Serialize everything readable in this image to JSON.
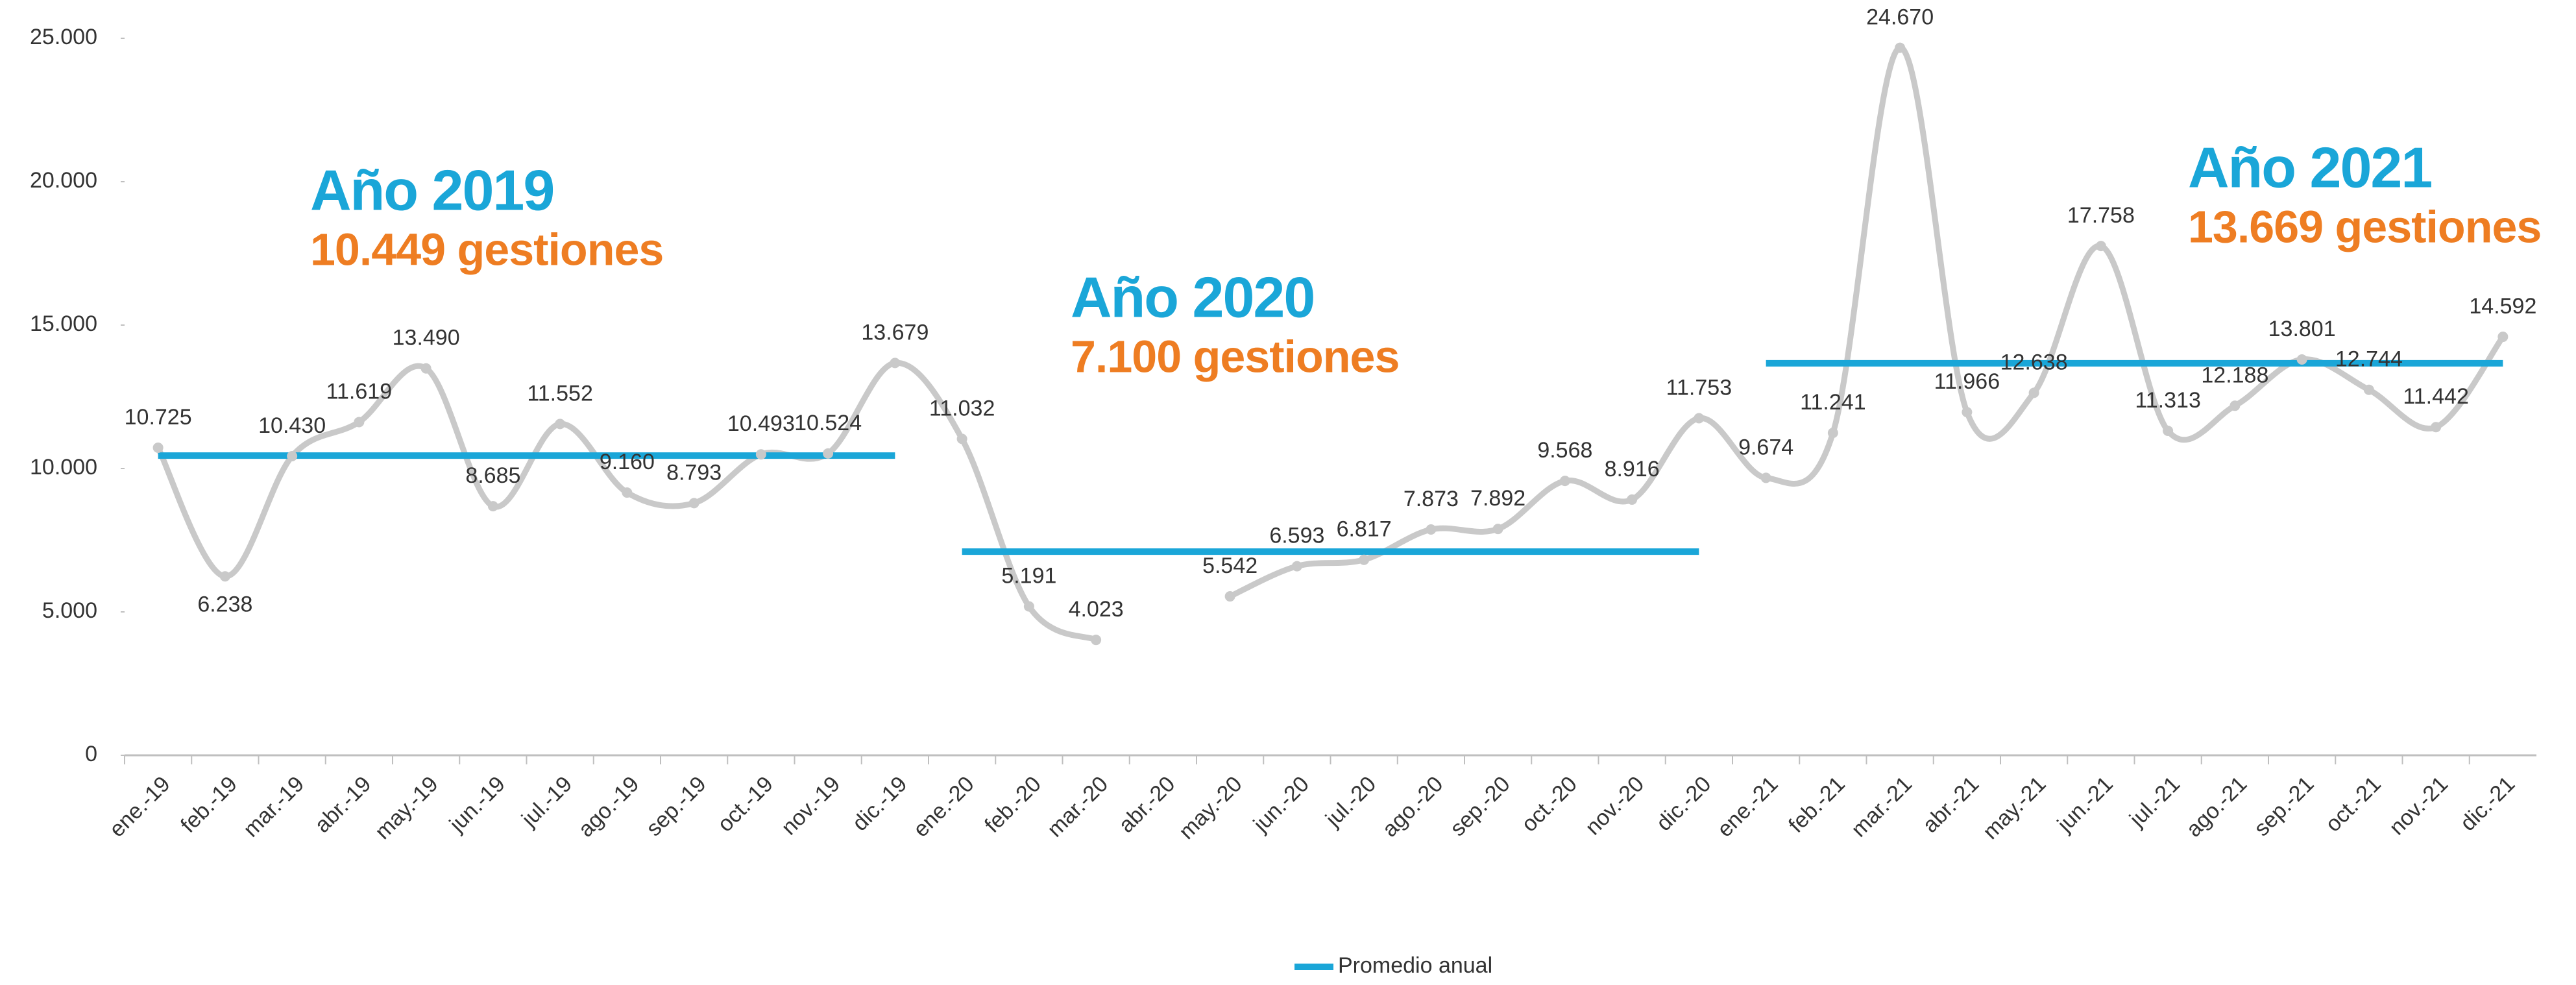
{
  "chart_data": {
    "type": "line",
    "categories": [
      "ene.-19",
      "feb.-19",
      "mar.-19",
      "abr.-19",
      "may.-19",
      "jun.-19",
      "jul.-19",
      "ago.-19",
      "sep.-19",
      "oct.-19",
      "nov.-19",
      "dic.-19",
      "ene.-20",
      "feb.-20",
      "mar.-20",
      "abr.-20",
      "may.-20",
      "jun.-20",
      "jul.-20",
      "ago.-20",
      "sep.-20",
      "oct.-20",
      "nov.-20",
      "dic.-20",
      "ene.-21",
      "feb.-21",
      "mar.-21",
      "abr.-21",
      "may.-21",
      "jun.-21",
      "jul.-21",
      "ago.-21",
      "sep.-21",
      "oct.-21",
      "nov.-21",
      "dic.-21"
    ],
    "series": [
      {
        "color": "#c9c9c9",
        "values": [
          10725,
          6238,
          10430,
          11619,
          13490,
          8685,
          11552,
          9160,
          8793,
          10493,
          10524,
          13679,
          11032,
          5191,
          4023,
          null,
          5542,
          6593,
          6817,
          7873,
          7892,
          9568,
          8916,
          11753,
          9674,
          11241,
          24670,
          11966,
          12638,
          17758,
          11313,
          12188,
          13801,
          12744,
          11442,
          14592
        ],
        "value_labels": [
          "10.725",
          "6.238",
          "10.430",
          "11.619",
          "13.490",
          "8.685",
          "11.552",
          "9.160",
          "8.793",
          "10.493",
          "10.524",
          "13.679",
          "11.032",
          "5.191",
          "4.023",
          null,
          "5.542",
          "6.593",
          "6.817",
          "7.873",
          "7.892",
          "9.568",
          "8.916",
          "11.753",
          "9.674",
          "11.241",
          "24.670",
          "11.966",
          "12.638",
          "17.758",
          "11.313",
          "12.188",
          "13.801",
          "12.744",
          "11.442",
          "14.592"
        ]
      }
    ],
    "averages": {
      "name": "Promedio anual",
      "color": "#1aa6d8",
      "titles": [
        "Año 2019",
        "Año 2020",
        "Año 2021"
      ],
      "values": [
        10449,
        7100,
        13669
      ],
      "value_labels": [
        "10.449 gestiones",
        "7.100 gestiones",
        "13.669 gestiones"
      ],
      "label_color": "#ee7d22"
    },
    "ylim": [
      0,
      25000
    ],
    "yticks": [
      0,
      {
        "value": 5000,
        "label": "5.000"
      },
      {
        "value": 10000,
        "label": "10.000"
      },
      {
        "value": 15000,
        "label": "15.000"
      },
      {
        "value": 20000,
        "label": "20.000"
      },
      {
        "value": 25000,
        "label": "25.000"
      }
    ]
  }
}
